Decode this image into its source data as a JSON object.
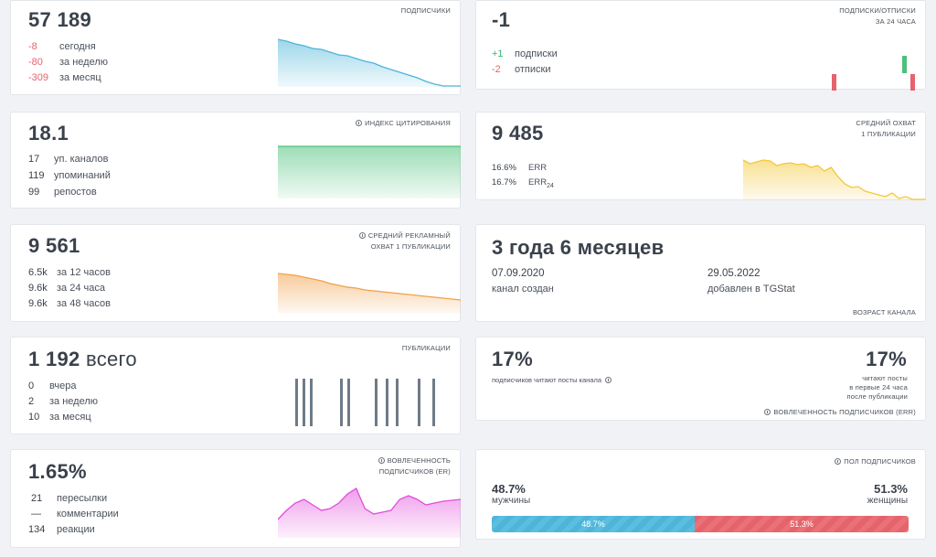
{
  "subscribers": {
    "value": "57 189",
    "caption": "ПОДПИСЧИКИ",
    "rows": [
      {
        "n": "-8",
        "label": "сегодня"
      },
      {
        "n": "-80",
        "label": "за неделю"
      },
      {
        "n": "-309",
        "label": "за месяц"
      }
    ],
    "trend": [
      12,
      14,
      17,
      19,
      22,
      23,
      26,
      29,
      30,
      33,
      36,
      38,
      42,
      45,
      48,
      51,
      54,
      58,
      61,
      66,
      72,
      78
    ]
  },
  "daily": {
    "value": "-1",
    "caption_line1": "ПОДПИСКИ/ОТПИСКИ",
    "caption_line2": "ЗА 24 ЧАСА",
    "rows": [
      {
        "n": "+1",
        "label": "подписки"
      },
      {
        "n": "-2",
        "label": "отписки"
      }
    ]
  },
  "citation": {
    "value": "18.1",
    "caption": "ИНДЕКС ЦИТИРОВАНИЯ",
    "rows": [
      {
        "n": "17",
        "label": "уп. каналов"
      },
      {
        "n": "119",
        "label": "упоминаний"
      },
      {
        "n": "99",
        "label": "репостов"
      }
    ]
  },
  "reach": {
    "value": "9 485",
    "caption_line1": "СРЕДНИЙ ОХВАТ",
    "caption_line2": "1 ПУБЛИКАЦИИ",
    "rows": [
      {
        "n": "16.6%",
        "label": "ERR",
        "sub": ""
      },
      {
        "n": "16.7%",
        "label": "ERR",
        "sub": "24"
      }
    ],
    "trend": [
      8,
      12,
      10,
      8,
      9,
      14,
      12,
      11,
      13,
      12,
      16,
      14,
      20,
      16,
      26,
      34,
      38,
      37,
      42,
      44,
      46,
      48,
      44,
      50,
      48,
      55,
      52,
      57
    ]
  },
  "ad_reach": {
    "value": "9 561",
    "caption_line1": "СРЕДНИЙ РЕКЛАМНЫЙ",
    "caption_line2": "ОХВАТ 1 ПУБЛИКАЦИИ",
    "rows": [
      {
        "n": "6.5k",
        "label": "за 12 часов"
      },
      {
        "n": "9.6k",
        "label": "за 24 часа"
      },
      {
        "n": "9.6k",
        "label": "за 48 часов"
      }
    ],
    "trend": [
      5,
      6,
      7,
      9,
      11,
      13,
      16,
      18,
      20,
      21,
      23,
      24,
      25,
      26,
      27,
      28,
      29,
      30,
      31,
      32,
      33,
      34
    ]
  },
  "age": {
    "value": "3 года 6 месяцев",
    "created_date": "07.09.2020",
    "created_label": "канал создан",
    "added_date": "29.05.2022",
    "added_label": "добавлен в TGStat",
    "caption": "ВОЗРАСТ КАНАЛА"
  },
  "posts": {
    "value": "1 192",
    "value_suffix": "всего",
    "caption": "ПУБЛИКАЦИИ",
    "rows": [
      {
        "n": "0",
        "label": "вчера"
      },
      {
        "n": "2",
        "label": "за неделю"
      },
      {
        "n": "10",
        "label": "за месяц"
      }
    ]
  },
  "read_share": {
    "left_value": "17%",
    "left_label": "подписчиков читают посты канала",
    "right_value": "17%",
    "right_line1": "читают посты",
    "right_line2": "в первые 24 часа",
    "right_line3": "после публикации",
    "caption": "ВОВЛЕЧЕННОСТЬ ПОДПИСЧИКОВ (ERR)"
  },
  "engagement": {
    "value": "1.65%",
    "caption_line1": "ВОВЛЕЧЕННОСТЬ",
    "caption_line2": "ПОДПИСЧИКОВ (ER)",
    "rows": [
      {
        "n": "21",
        "label": "пересылки"
      },
      {
        "n": "—",
        "label": "комментарии"
      },
      {
        "n": "134",
        "label": "реакции"
      }
    ],
    "trend": [
      40,
      30,
      22,
      18,
      24,
      30,
      28,
      22,
      12,
      6,
      28,
      34,
      32,
      30,
      18,
      14,
      18,
      24,
      22,
      20,
      19,
      18
    ]
  },
  "gender": {
    "caption": "ПОЛ ПОДПИСЧИКОВ",
    "male_value": "48.7%",
    "male_label": "мужчины",
    "female_value": "51.3%",
    "female_label": "женщины",
    "male_fraction": 0.487,
    "male_bar_label": "48.7%",
    "female_bar_label": "51.3%"
  },
  "colors": {
    "blue": "#4cb5d9",
    "green": "#4cc17a",
    "orange": "#f0a14a",
    "yellow": "#f3c838",
    "magenta": "#e24ddb",
    "red": "#e5646b",
    "gray_bar": "#6e7b88"
  }
}
